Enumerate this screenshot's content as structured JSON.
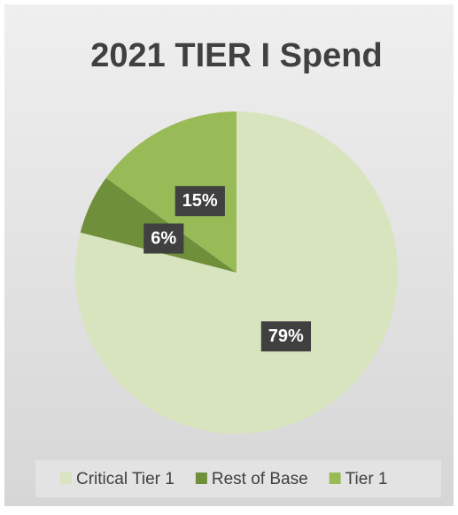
{
  "chart_data": {
    "type": "pie",
    "title": "2021 TIER I Spend",
    "categories": [
      "Critical Tier 1",
      "Rest of Base",
      "Tier 1"
    ],
    "values": [
      79,
      6,
      15
    ],
    "value_labels": [
      "79%",
      "6%",
      "15%"
    ],
    "colors": [
      "#d8e4bd",
      "#6f8f3b",
      "#98bb58"
    ]
  }
}
